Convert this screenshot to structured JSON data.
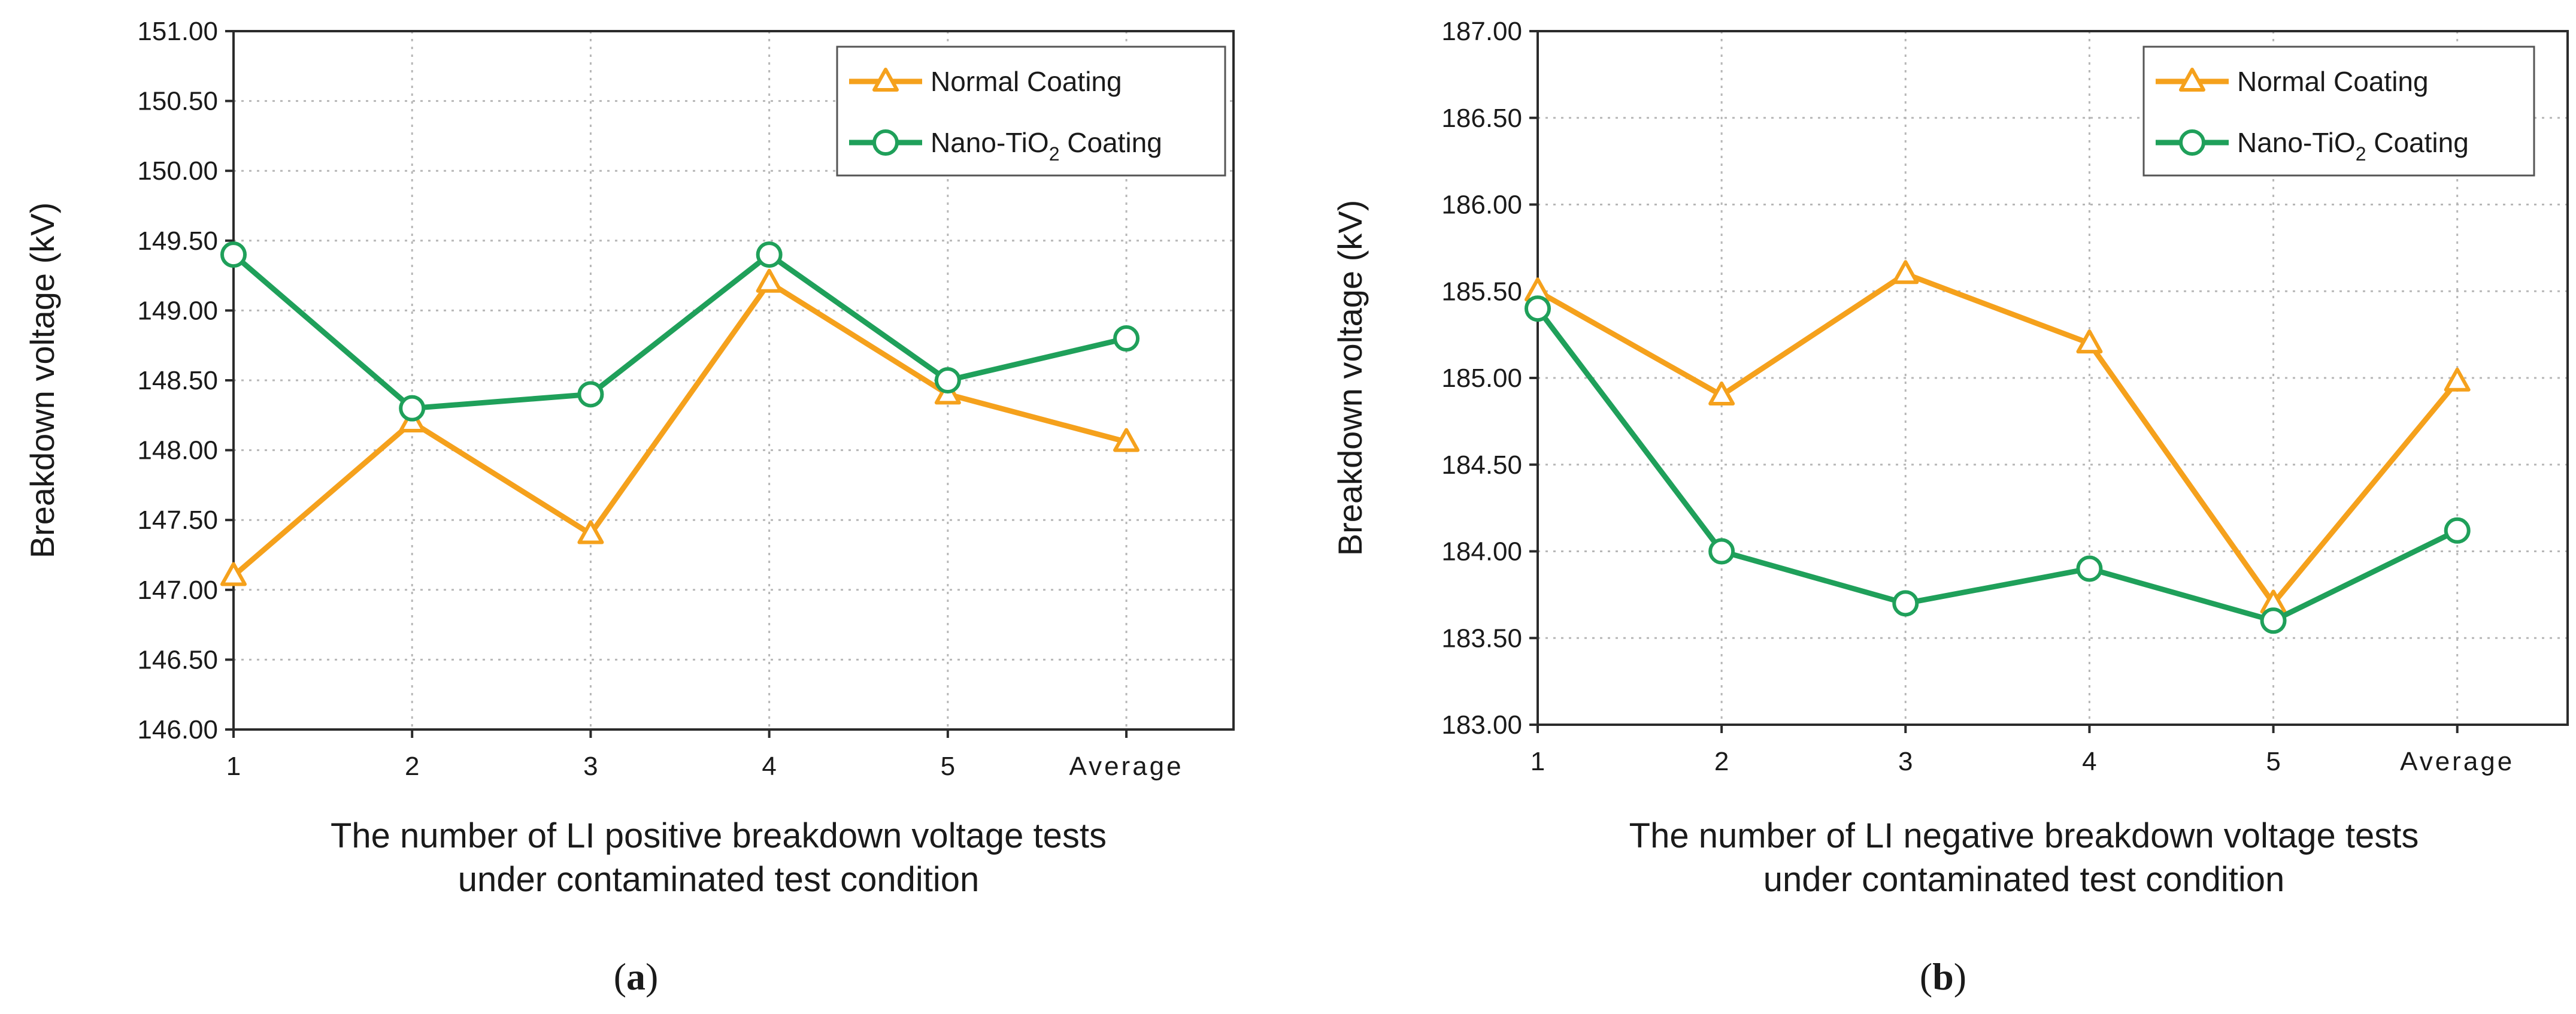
{
  "colors": {
    "normal": "#F5A11C",
    "nano": "#1FA05A",
    "grid": "#b7b7b7",
    "axis": "#2b2b2b"
  },
  "chart_data": [
    {
      "panel": "a",
      "type": "line",
      "caption": {
        "open": "(",
        "letter": "a",
        "close": ")"
      },
      "categories": [
        "1",
        "2",
        "3",
        "4",
        "5",
        "Average"
      ],
      "ylabel": "Breakdown voltage (kV)",
      "xlabel_lines": [
        "The number of LI positive breakdown voltage tests",
        "under contaminated test condition"
      ],
      "ylim": [
        146.0,
        151.0
      ],
      "ystep": 0.5,
      "y_decimals": 2,
      "grid": true,
      "legend_position": "top-right",
      "series": [
        {
          "name": "Normal Coating",
          "marker": "triangle",
          "color": "#F5A11C",
          "values": [
            147.1,
            148.2,
            147.4,
            149.2,
            148.4,
            148.06
          ]
        },
        {
          "name": "Nano-TiO2  Coating",
          "name_parts": [
            "Nano-TiO",
            "2",
            "  Coating"
          ],
          "marker": "circle",
          "color": "#1FA05A",
          "values": [
            149.4,
            148.3,
            148.4,
            149.4,
            148.5,
            148.8
          ]
        }
      ]
    },
    {
      "panel": "b",
      "type": "line",
      "caption": {
        "open": "(",
        "letter": "b",
        "close": ")"
      },
      "categories": [
        "1",
        "2",
        "3",
        "4",
        "5",
        "Average"
      ],
      "ylabel": "Breakdown voltage (kV)",
      "xlabel_lines": [
        "The number of LI negative breakdown voltage tests",
        "under contaminated test condition"
      ],
      "ylim": [
        183.0,
        187.0
      ],
      "ystep": 0.5,
      "y_decimals": 2,
      "grid": true,
      "legend_position": "top-right",
      "series": [
        {
          "name": "Normal Coating",
          "marker": "triangle",
          "color": "#F5A11C",
          "values": [
            185.5,
            184.9,
            185.6,
            185.2,
            183.7,
            184.98
          ]
        },
        {
          "name": "Nano-TiO2  Coating",
          "name_parts": [
            "Nano-TiO",
            "2",
            "  Coating"
          ],
          "marker": "circle",
          "color": "#1FA05A",
          "values": [
            185.4,
            184.0,
            183.7,
            183.9,
            183.6,
            184.12
          ]
        }
      ]
    }
  ]
}
